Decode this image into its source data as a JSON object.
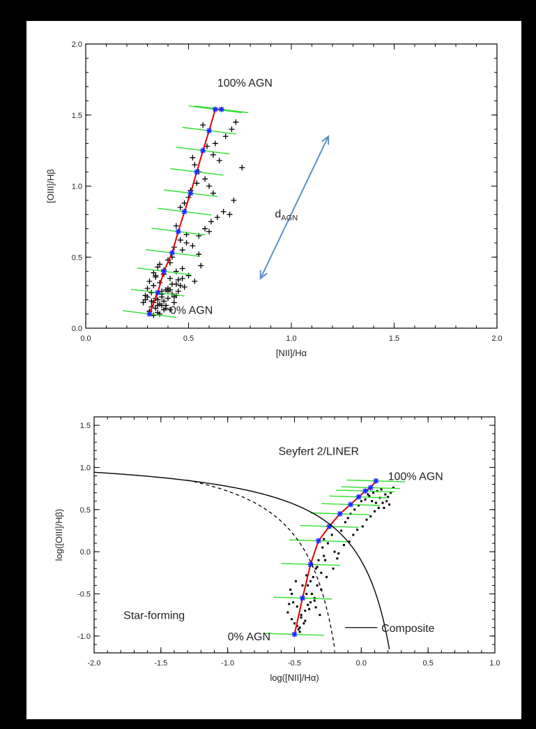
{
  "chart_data": [
    {
      "type": "scatter",
      "xlabel": "[NII]/Hα",
      "ylabel": "[OIII]/Hβ",
      "xlim": [
        0.0,
        2.0
      ],
      "ylim": [
        0.0,
        2.0
      ],
      "xticks": [
        "0.0",
        "0.5",
        "1.0",
        "1.5",
        "2.0"
      ],
      "yticks": [
        "0.0",
        "0.5",
        "1.0",
        "1.5",
        "2.0"
      ],
      "annotations": [
        "100% AGN",
        "0% AGN",
        "dAGN"
      ],
      "colors": {
        "mixing_line": "#e00000",
        "mixing_markers": "#1a2cff",
        "error_bars": "#2fe02f",
        "arrow": "#5b8fc8",
        "points": "#000000"
      },
      "mixing_line": {
        "x": [
          0.31,
          0.35,
          0.38,
          0.42,
          0.45,
          0.48,
          0.51,
          0.54,
          0.57,
          0.6,
          0.63,
          0.66
        ],
        "y": [
          0.1,
          0.25,
          0.4,
          0.53,
          0.68,
          0.82,
          0.95,
          1.1,
          1.25,
          1.39,
          1.54,
          1.54
        ]
      },
      "segments_x_half_width": 0.13,
      "segments_slope": -0.18,
      "points": {
        "x": [
          0.31,
          0.32,
          0.33,
          0.34,
          0.35,
          0.36,
          0.37,
          0.38,
          0.39,
          0.4,
          0.41,
          0.42,
          0.43,
          0.44,
          0.45,
          0.3,
          0.33,
          0.36,
          0.39,
          0.42,
          0.45,
          0.48,
          0.34,
          0.38,
          0.41,
          0.44,
          0.47,
          0.5,
          0.53,
          0.56,
          0.32,
          0.35,
          0.37,
          0.4,
          0.43,
          0.46,
          0.29,
          0.31,
          0.34,
          0.36,
          0.4,
          0.42,
          0.47,
          0.49,
          0.52,
          0.55,
          0.58,
          0.61,
          0.64,
          0.67,
          0.7,
          0.72,
          0.62,
          0.6,
          0.58,
          0.55,
          0.53,
          0.5,
          0.48,
          0.46,
          0.44,
          0.52,
          0.57,
          0.63,
          0.68,
          0.71,
          0.73,
          0.76,
          0.65,
          0.62,
          0.59,
          0.57,
          0.54,
          0.51,
          0.49,
          0.46,
          0.43,
          0.41,
          0.38,
          0.35,
          0.33,
          0.3,
          0.28,
          0.37,
          0.4,
          0.39,
          0.36,
          0.33,
          0.31,
          0.34,
          0.37,
          0.29,
          0.32,
          0.35,
          0.38,
          0.41,
          0.44,
          0.47,
          0.55,
          0.6
        ],
        "y": [
          0.12,
          0.15,
          0.18,
          0.14,
          0.2,
          0.17,
          0.22,
          0.19,
          0.16,
          0.21,
          0.13,
          0.24,
          0.18,
          0.23,
          0.26,
          0.28,
          0.3,
          0.32,
          0.27,
          0.31,
          0.34,
          0.29,
          0.36,
          0.38,
          0.35,
          0.4,
          0.42,
          0.37,
          0.33,
          0.44,
          0.25,
          0.11,
          0.16,
          0.26,
          0.22,
          0.3,
          0.2,
          0.33,
          0.37,
          0.45,
          0.48,
          0.5,
          0.55,
          0.6,
          0.58,
          0.65,
          0.7,
          0.75,
          0.78,
          0.82,
          0.8,
          0.9,
          0.95,
          1.0,
          1.05,
          1.1,
          1.15,
          0.92,
          0.88,
          0.85,
          0.72,
          1.2,
          1.25,
          1.3,
          1.35,
          1.4,
          1.45,
          1.13,
          1.18,
          1.22,
          1.28,
          1.43,
          1.02,
          0.97,
          0.66,
          0.62,
          0.57,
          0.46,
          0.41,
          0.43,
          0.39,
          0.22,
          0.18,
          0.24,
          0.28,
          0.14,
          0.1,
          0.09,
          0.12,
          0.21,
          0.26,
          0.23,
          0.19,
          0.16,
          0.13,
          0.27,
          0.31,
          0.35,
          0.52,
          0.68
        ]
      }
    },
    {
      "type": "scatter",
      "xlabel": "log([NII]/Hα)",
      "ylabel": "log([OIII]/Hβ)",
      "xlim": [
        -2.0,
        1.0
      ],
      "ylim": [
        -1.2,
        1.6
      ],
      "xticks": [
        "-2.0",
        "-1.5",
        "-1.0",
        "-0.5",
        "0.0",
        "0.5",
        "1.0"
      ],
      "yticks": [
        "-1.0",
        "-0.5",
        "0.0",
        "0.5",
        "1.0",
        "1.5"
      ],
      "annotations": [
        "Seyfert 2/LINER",
        "100% AGN",
        "Star-forming",
        "0% AGN",
        "Composite"
      ],
      "colors": {
        "mixing_line": "#e00000",
        "mixing_markers": "#1a2cff",
        "error_bars": "#2fe02f",
        "points": "#000000"
      },
      "mixing_line": {
        "x": [
          -0.5,
          -0.44,
          -0.38,
          -0.32,
          -0.24,
          -0.16,
          -0.08,
          -0.02,
          0.03,
          0.07,
          0.11
        ],
        "y": [
          -0.98,
          -0.55,
          -0.15,
          0.13,
          0.3,
          0.45,
          0.56,
          0.65,
          0.72,
          0.76,
          0.84
        ]
      },
      "segments_x_half_width": 0.22,
      "segments_slope": -0.05,
      "points": {
        "x": [
          -0.55,
          -0.52,
          -0.5,
          -0.48,
          -0.46,
          -0.44,
          -0.42,
          -0.4,
          -0.38,
          -0.36,
          -0.34,
          -0.32,
          -0.3,
          -0.28,
          -0.53,
          -0.49,
          -0.45,
          -0.41,
          -0.37,
          -0.33,
          -0.29,
          -0.51,
          -0.47,
          -0.43,
          -0.39,
          -0.35,
          -0.31,
          -0.27,
          -0.25,
          -0.22,
          -0.2,
          -0.18,
          -0.15,
          -0.12,
          -0.1,
          -0.08,
          -0.05,
          -0.02,
          0.0,
          0.03,
          0.06,
          0.09,
          0.12,
          0.15,
          0.18,
          0.2,
          0.22,
          0.24,
          0.16,
          0.13,
          0.1,
          0.07,
          0.04,
          0.01,
          -0.03,
          -0.06,
          -0.09,
          -0.13,
          -0.17,
          -0.21,
          -0.26,
          -0.3,
          -0.35,
          -0.4,
          -0.45,
          -0.48,
          -0.52,
          -0.54,
          -0.46,
          -0.42,
          -0.38,
          -0.33,
          -0.28,
          -0.23,
          0.19,
          0.21,
          0.14,
          0.08,
          0.17,
          0.11,
          0.05,
          -0.01,
          -0.44,
          -0.41,
          -0.37,
          -0.34
        ],
        "y": [
          -0.72,
          -0.8,
          -0.85,
          -0.65,
          -0.9,
          -0.55,
          -0.7,
          -0.4,
          -0.6,
          -0.3,
          -0.2,
          -0.1,
          -0.25,
          -0.05,
          -0.45,
          -0.35,
          -0.78,
          -0.5,
          -0.15,
          -0.4,
          0.05,
          -0.6,
          -0.92,
          -0.85,
          -0.68,
          -0.55,
          -0.75,
          -0.1,
          0.1,
          0.2,
          0.0,
          -0.08,
          0.25,
          0.35,
          0.4,
          0.45,
          0.5,
          0.55,
          0.6,
          0.62,
          0.66,
          0.7,
          0.72,
          0.74,
          0.68,
          0.65,
          0.7,
          0.76,
          0.58,
          0.52,
          0.48,
          0.42,
          0.38,
          0.3,
          0.26,
          0.2,
          0.12,
          0.08,
          -0.02,
          -0.2,
          -0.3,
          -0.45,
          -0.58,
          -0.63,
          -0.75,
          -0.88,
          -0.5,
          -0.62,
          -0.95,
          -0.82,
          -0.35,
          -0.18,
          0.15,
          0.32,
          0.6,
          0.56,
          0.64,
          0.6,
          0.52,
          0.58,
          0.68,
          0.66,
          -0.4,
          -0.28,
          -0.5,
          -0.66
        ]
      },
      "curves": {
        "solid": "kewley_2001",
        "dashed": "kauffmann_2003"
      }
    }
  ]
}
